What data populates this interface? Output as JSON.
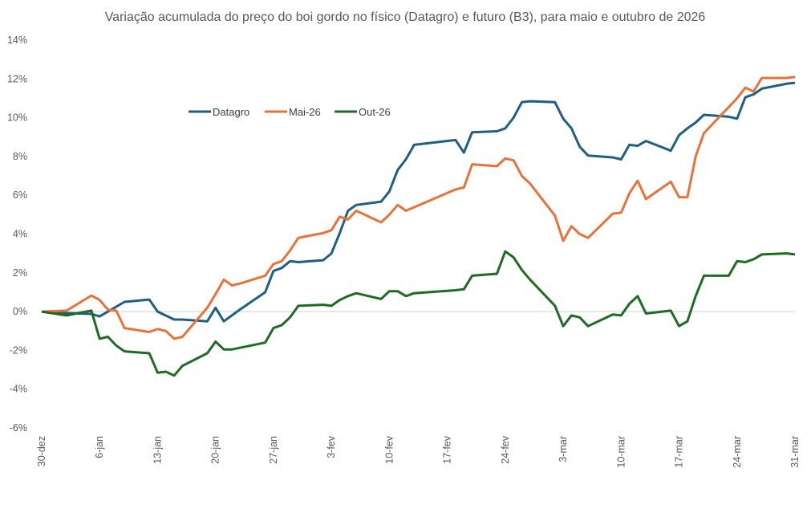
{
  "chart_data": {
    "type": "line",
    "title": "Variação acumulada do preço do boi gordo no físico (Datagro) e futuro (B3), para maio e outubro de 2026",
    "xlabel": "",
    "ylabel": "",
    "x_unit": "days since 30-dez",
    "ylim": [
      -6,
      14
    ],
    "xlim": [
      0,
      91
    ],
    "y_ticks": [
      -6,
      -4,
      -2,
      0,
      2,
      4,
      6,
      8,
      10,
      12,
      14
    ],
    "y_tick_labels": [
      "-6%",
      "-4%",
      "-2%",
      "0%",
      "2%",
      "4%",
      "6%",
      "8%",
      "10%",
      "12%",
      "14%"
    ],
    "x_ticks": [
      0,
      7,
      14,
      21,
      28,
      35,
      42,
      49,
      56,
      63,
      70,
      77,
      84,
      91
    ],
    "x_tick_labels": [
      "30-dez",
      "6-jan",
      "13-jan",
      "20-jan",
      "27-jan",
      "3-fev",
      "10-fev",
      "17-fev",
      "24-fev",
      "3-mar",
      "10-mar",
      "17-mar",
      "24-mar",
      "31-mar"
    ],
    "grid": "zero-line only",
    "legend_position": "top-left",
    "series": [
      {
        "name": "Datagro",
        "color": "#1f5f86",
        "x": [
          0,
          3,
          6,
          7,
          8,
          10,
          13,
          14,
          16,
          17,
          20,
          21,
          22,
          24,
          27,
          28,
          29,
          30,
          31,
          34,
          35,
          36,
          37,
          38,
          41,
          42,
          43,
          44,
          45,
          50,
          51,
          52,
          55,
          56,
          57,
          58,
          59,
          62,
          63,
          64,
          65,
          66,
          69,
          70,
          71,
          72,
          73,
          76,
          77,
          78,
          79,
          80,
          83,
          84,
          85,
          86,
          87,
          90,
          91
        ],
        "y": [
          0,
          -0.08,
          -0.12,
          -0.25,
          0,
          0.5,
          0.62,
          0,
          -0.41,
          -0.41,
          -0.5,
          0.2,
          -0.5,
          0.12,
          1.0,
          2.1,
          2.25,
          2.6,
          2.55,
          2.65,
          3.0,
          4.05,
          5.2,
          5.5,
          5.67,
          6.2,
          7.3,
          7.85,
          8.6,
          8.85,
          8.2,
          9.25,
          9.3,
          9.45,
          10.0,
          10.8,
          10.85,
          10.8,
          9.95,
          9.45,
          8.5,
          8.05,
          7.95,
          7.85,
          8.6,
          8.55,
          8.8,
          8.3,
          9.1,
          9.45,
          9.75,
          10.15,
          10.05,
          9.95,
          11.05,
          11.2,
          11.5,
          11.75,
          11.8
        ]
      },
      {
        "name": "Mai-26",
        "color": "#e8733a",
        "x": [
          0,
          3,
          6,
          7,
          8,
          9,
          10,
          13,
          14,
          15,
          16,
          17,
          20,
          21,
          22,
          23,
          24,
          27,
          28,
          29,
          30,
          31,
          34,
          35,
          36,
          37,
          38,
          41,
          42,
          43,
          44,
          50,
          51,
          52,
          55,
          56,
          57,
          58,
          59,
          62,
          63,
          64,
          65,
          66,
          69,
          70,
          71,
          72,
          73,
          76,
          77,
          78,
          79,
          80,
          83,
          84,
          85,
          86,
          87,
          90,
          91
        ],
        "y": [
          0,
          0.05,
          0.83,
          0.6,
          0.1,
          0.05,
          -0.85,
          -1.05,
          -0.9,
          -1.0,
          -1.4,
          -1.3,
          0.2,
          0.9,
          1.65,
          1.35,
          1.45,
          1.85,
          2.45,
          2.6,
          3.15,
          3.8,
          4.05,
          4.2,
          4.9,
          4.75,
          5.2,
          4.6,
          5.0,
          5.5,
          5.2,
          6.3,
          6.4,
          7.6,
          7.5,
          7.9,
          7.8,
          7.0,
          6.6,
          4.95,
          3.65,
          4.4,
          4.0,
          3.8,
          5.05,
          5.1,
          6.1,
          6.75,
          5.8,
          6.7,
          5.9,
          5.9,
          8.0,
          9.2,
          10.55,
          11.0,
          11.55,
          11.35,
          12.05,
          12.05,
          12.1
        ]
      },
      {
        "name": "Out-26",
        "color": "#1e6b23",
        "x": [
          0,
          3,
          6,
          7,
          8,
          9,
          10,
          13,
          14,
          15,
          16,
          17,
          20,
          21,
          22,
          23,
          27,
          28,
          29,
          30,
          31,
          34,
          35,
          36,
          37,
          38,
          41,
          42,
          43,
          44,
          45,
          50,
          51,
          52,
          55,
          56,
          57,
          58,
          59,
          62,
          63,
          64,
          65,
          66,
          69,
          70,
          71,
          72,
          73,
          76,
          77,
          78,
          79,
          80,
          83,
          84,
          85,
          86,
          87,
          90,
          91
        ],
        "y": [
          0,
          -0.2,
          0.05,
          -1.4,
          -1.3,
          -1.75,
          -2.05,
          -2.15,
          -3.15,
          -3.1,
          -3.3,
          -2.8,
          -2.15,
          -1.55,
          -1.95,
          -1.95,
          -1.6,
          -0.85,
          -0.7,
          -0.3,
          0.3,
          0.35,
          0.3,
          0.6,
          0.8,
          0.95,
          0.65,
          1.05,
          1.05,
          0.8,
          0.95,
          1.1,
          1.15,
          1.85,
          1.95,
          3.1,
          2.8,
          2.15,
          1.65,
          0.3,
          -0.75,
          -0.2,
          -0.3,
          -0.75,
          -0.15,
          -0.2,
          0.4,
          0.8,
          -0.1,
          0.05,
          -0.75,
          -0.5,
          0.8,
          1.85,
          1.85,
          2.6,
          2.55,
          2.7,
          2.95,
          3.0,
          2.95
        ]
      }
    ]
  }
}
